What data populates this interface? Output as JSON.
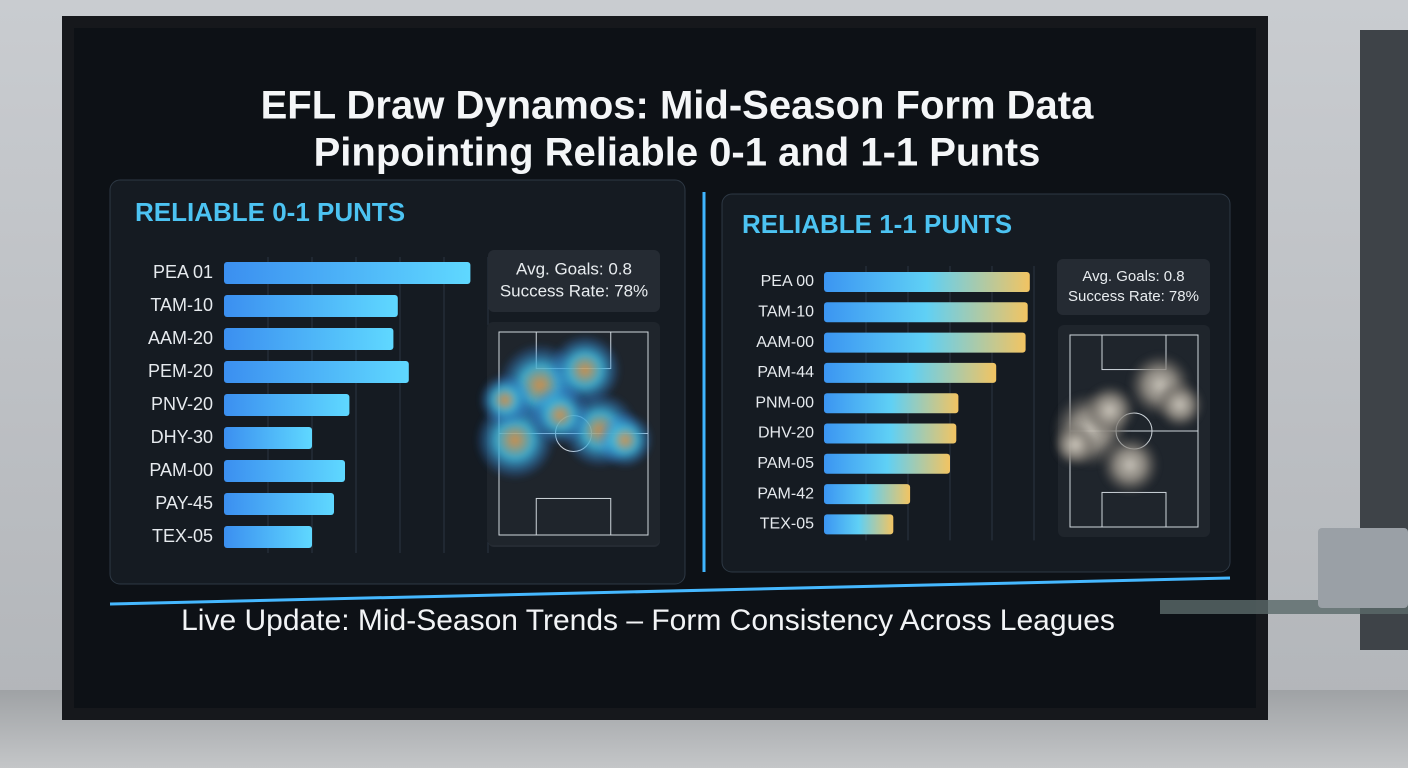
{
  "title_lines": [
    "EFL Draw Dynamos: Mid-Season Form Data",
    "Pinpointing Reliable 0-1 and 1-1 Punts"
  ],
  "footer": "Live Update: Mid-Season Trends – Form Consistency Across Leagues",
  "chart_data": [
    {
      "type": "bar",
      "orientation": "horizontal",
      "title": "RELIABLE 0-1 PUNTS",
      "categories": [
        "PEA 01",
        "TAM-10",
        "AAM-20",
        "PEM-20",
        "PNV-20",
        "DHY-30",
        "PAM-00",
        "PAY-45",
        "TEX-05"
      ],
      "values": [
        5.6,
        3.95,
        3.85,
        4.2,
        2.85,
        2.0,
        2.75,
        2.5,
        2.0
      ],
      "colors": [
        "#3b8ff0",
        "#5fd8ff"
      ],
      "grid": true,
      "annotations": [
        "Avg. Goals: 0.8",
        "Success Rate: 78%",
        "Avg. Goals: 0.8",
        "Success Rate: 78%"
      ]
    },
    {
      "type": "bar",
      "orientation": "horizontal",
      "title": "RELIABLE 1-1 PUNTS",
      "categories": [
        "PEA 00",
        "TAM-10",
        "AAM-00",
        "PAM-44",
        "PNM-00",
        "DHV-20",
        "PAM-05",
        "PAM-42",
        "TEX-05"
      ],
      "values": [
        4.9,
        4.85,
        4.8,
        4.1,
        3.2,
        3.15,
        3.0,
        2.05,
        1.65
      ],
      "colors": [
        "#3b95f2",
        "#5fd0f5",
        "#f2c462"
      ],
      "grid": true,
      "annotations": [
        "Avg. Goals: 0.8",
        "Success Rate: 78%"
      ]
    }
  ]
}
